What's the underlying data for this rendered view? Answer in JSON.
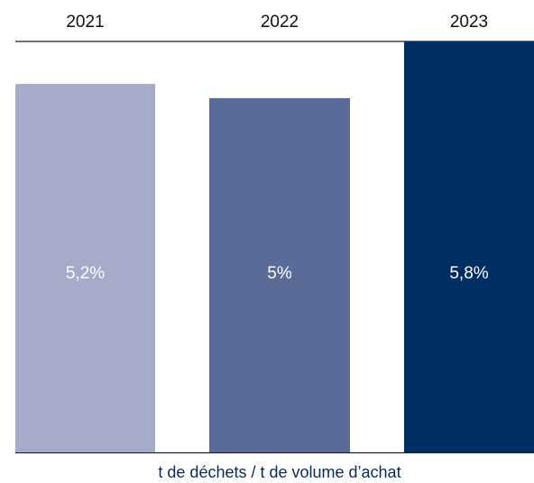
{
  "chart_data": {
    "type": "bar",
    "categories": [
      "2021",
      "2022",
      "2023"
    ],
    "values": [
      5.2,
      5,
      5.8
    ],
    "value_labels": [
      "5,2%",
      "5%",
      "5,8%"
    ],
    "colors": [
      "#a5abc8",
      "#5b6b97",
      "#002d62"
    ],
    "xlabel": "t de déchets / t de volume d’achat",
    "ylim": [
      0,
      5.8
    ]
  }
}
